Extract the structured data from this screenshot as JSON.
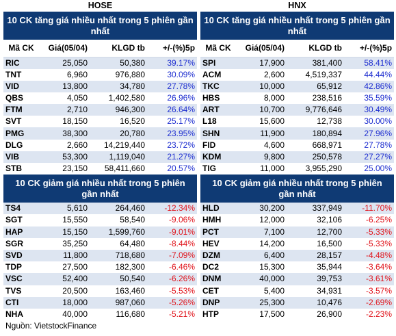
{
  "hose": {
    "title": "HOSE",
    "top_gainers": {
      "heading": "10 CK tăng giá nhiều nhất trong 5 phiên gần nhất",
      "columns": [
        "Mã CK",
        "Giá(05/04)",
        "KLGD tb",
        "+/-(%)5p"
      ],
      "rows": [
        [
          "RIC",
          "25,050",
          "50,380",
          "39.17%"
        ],
        [
          "TNT",
          "6,960",
          "976,880",
          "30.09%"
        ],
        [
          "VID",
          "13,800",
          "34,780",
          "27.78%"
        ],
        [
          "QBS",
          "4,050",
          "1,402,580",
          "26.96%"
        ],
        [
          "FTM",
          "2,710",
          "946,300",
          "26.64%"
        ],
        [
          "SVT",
          "18,150",
          "16,520",
          "25.17%"
        ],
        [
          "PMG",
          "38,300",
          "20,780",
          "23.95%"
        ],
        [
          "DLG",
          "2,660",
          "14,219,440",
          "23.72%"
        ],
        [
          "VIB",
          "53,300",
          "1,119,040",
          "21.27%"
        ],
        [
          "STB",
          "23,150",
          "58,411,660",
          "20.57%"
        ]
      ]
    },
    "top_losers": {
      "heading": "10 CK giảm giá nhiều nhất trong 5 phiên gần nhất",
      "rows": [
        [
          "TS4",
          "5,610",
          "264,460",
          "-12.34%"
        ],
        [
          "SGT",
          "15,550",
          "58,540",
          "-9.06%"
        ],
        [
          "HAP",
          "15,150",
          "1,599,760",
          "-9.01%"
        ],
        [
          "SGR",
          "35,250",
          "64,480",
          "-8.44%"
        ],
        [
          "SVD",
          "11,800",
          "718,680",
          "-7.09%"
        ],
        [
          "TDP",
          "27,500",
          "182,300",
          "-6.46%"
        ],
        [
          "VSC",
          "52,400",
          "50,540",
          "-6.26%"
        ],
        [
          "TVS",
          "20,500",
          "163,460",
          "-5.53%"
        ],
        [
          "CTI",
          "18,000",
          "987,060",
          "-5.26%"
        ],
        [
          "NHA",
          "40,000",
          "116,680",
          "-5.21%"
        ]
      ]
    }
  },
  "hnx": {
    "title": "HNX",
    "top_gainers": {
      "heading": "10 CK tăng giá nhiều nhất trong 5 phiên gần nhất",
      "columns": [
        "Mã CK",
        "Giá(05/04)",
        "KLGD tb",
        "+/-(%)5p"
      ],
      "rows": [
        [
          "SPI",
          "17,900",
          "381,400",
          "58.41%"
        ],
        [
          "ACM",
          "2,600",
          "4,519,337",
          "44.44%"
        ],
        [
          "TKC",
          "10,000",
          "65,912",
          "42.86%"
        ],
        [
          "HBS",
          "8,000",
          "238,516",
          "35.59%"
        ],
        [
          "ART",
          "10,700",
          "9,776,646",
          "30.49%"
        ],
        [
          "L18",
          "15,600",
          "12,738",
          "30.00%"
        ],
        [
          "SHN",
          "11,900",
          "180,894",
          "27.96%"
        ],
        [
          "FID",
          "4,600",
          "668,971",
          "27.78%"
        ],
        [
          "KDM",
          "9,800",
          "250,578",
          "27.27%"
        ],
        [
          "TIG",
          "11,000",
          "3,955,290",
          "25.00%"
        ]
      ]
    },
    "top_losers": {
      "heading": "10 CK giảm giá nhiều nhất trong 5 phiên gần nhất",
      "rows": [
        [
          "HLD",
          "30,200",
          "337,949",
          "-11.70%"
        ],
        [
          "HMH",
          "12,000",
          "32,106",
          "-6.25%"
        ],
        [
          "PCT",
          "7,100",
          "12,700",
          "-5.33%"
        ],
        [
          "HEV",
          "14,200",
          "16,500",
          "-5.33%"
        ],
        [
          "DZM",
          "6,400",
          "28,157",
          "-4.48%"
        ],
        [
          "DC2",
          "15,300",
          "35,944",
          "-3.64%"
        ],
        [
          "DNM",
          "40,000",
          "39,753",
          "-3.61%"
        ],
        [
          "CET",
          "5,400",
          "34,931",
          "-3.57%"
        ],
        [
          "DNP",
          "25,300",
          "10,476",
          "-2.69%"
        ],
        [
          "HTP",
          "17,500",
          "26,900",
          "-2.23%"
        ]
      ]
    }
  },
  "source": "Nguồn: VietstockFinance",
  "colors": {
    "header_bg": "#0f3a74",
    "stripe_bg": "#dde5f1",
    "positive": "#1f2fd0",
    "negative": "#e0141c"
  }
}
